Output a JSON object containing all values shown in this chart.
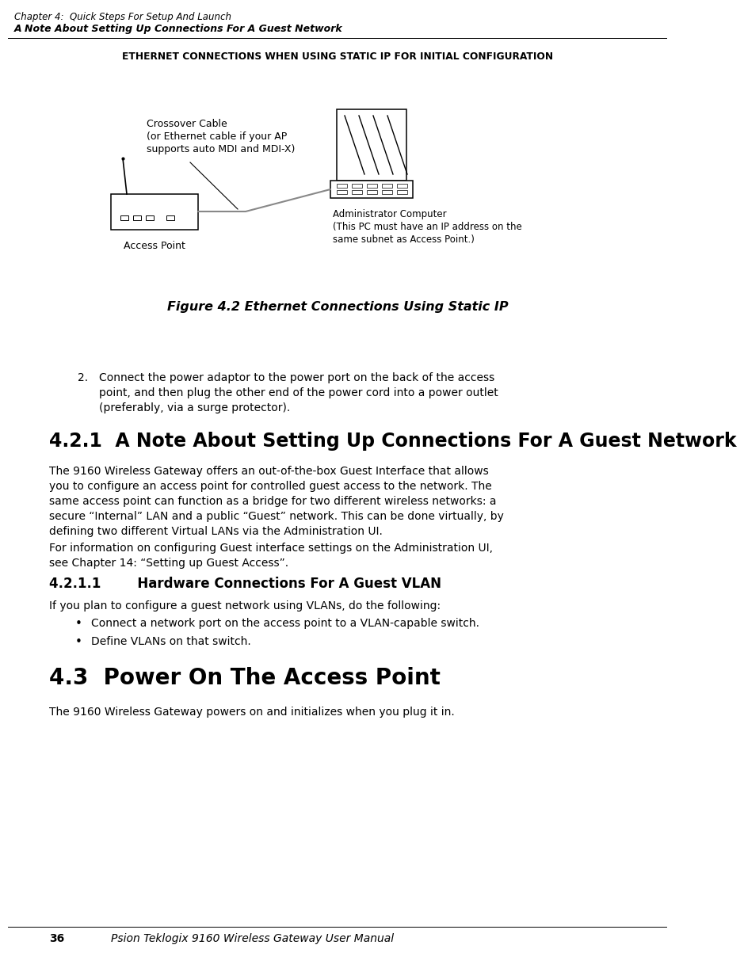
{
  "bg_color": "#ffffff",
  "header_line1": "Chapter 4:  Quick Steps For Setup And Launch",
  "header_line2": "A Note About Setting Up Connections For A Guest Network",
  "diagram_title": "ETHERNET CONNECTIONS WHEN USING STATIC IP FOR INITIAL CONFIGURATION",
  "figure_caption": "Figure 4.2 Ethernet Connections Using Static IP",
  "label_crossover": "Crossover Cable\n(or Ethernet cable if your AP\nsupports auto MDI and MDI-X)",
  "label_admin": "Administrator Computer\n(This PC must have an IP address on the\nsame subnet as Access Point.)",
  "label_ap": "Access Point",
  "section_421_title": "4.2.1  A Note About Setting Up Connections For A Guest Network",
  "section_421_body1": "The 9160 Wireless Gateway offers an out-of-the-box Guest Interface that allows you to configure an access point for controlled guest access to the network. The same access point can function as a bridge for two different wireless networks: a secure “Internal” LAN and a public “Guest” network. This can be done virtually, by defining two different Virtual LANs via the Administration UI.",
  "section_421_body2": "For information on configuring Guest interface settings on the Administration UI, see Chapter 14: “Setting up Guest Access”.",
  "section_4211_title": "4.2.1.1        Hardware Connections For A Guest VLAN",
  "section_4211_body": "If you plan to configure a guest network using VLANs, do the following:",
  "bullet1": "Connect a network port on the access point to a VLAN-capable switch.",
  "bullet2": "Define VLANs on that switch.",
  "section_43_title": "4.3  Power On The Access Point",
  "section_43_body": "The 9160 Wireless Gateway powers on and initializes when you plug it in.",
  "footer_page": "36",
  "footer_text": "Psion Teklogix 9160 Wireless Gateway User Manual",
  "item2_text": "Connect the power adaptor to the power port on the back of the access\npoint, and then plug the other end of the power cord into a power outlet\n(preferably, via a surge protector).",
  "text_color": "#000000"
}
